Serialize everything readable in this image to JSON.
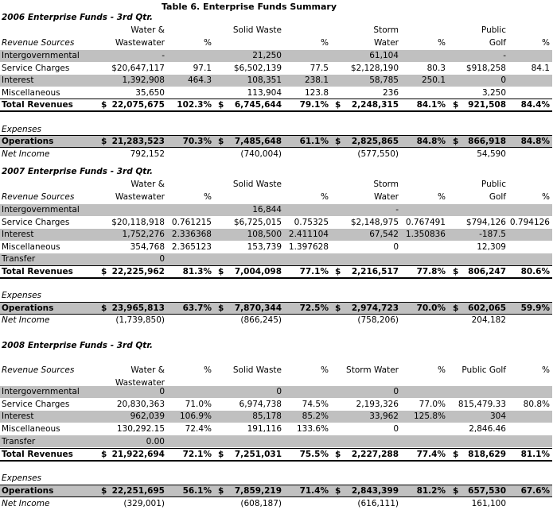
{
  "title": "Table 6.  Enterprise Funds Summary",
  "sections": [
    {
      "heading": "2006 Enterprise Funds - 3rd Qtr.",
      "header_rows": [
        [
          null,
          "Water &",
          null,
          "Solid Waste",
          null,
          "Storm",
          null,
          "Public",
          null
        ],
        [
          "Revenue Sources",
          "Wastewater",
          "%",
          null,
          "%",
          "Water",
          "%",
          "Golf",
          "%"
        ]
      ],
      "revenue_rows": [
        [
          "Intergovernmental",
          "-",
          null,
          "21,250",
          null,
          "61,104",
          null,
          "-",
          null
        ],
        [
          "Service Charges",
          "$20,647,117",
          "97.1",
          "$6,502,139",
          "77.5",
          "$2,128,190",
          "80.3",
          "$918,258",
          "84.1"
        ],
        [
          "Interest",
          "1,392,908",
          "464.3",
          "108,351",
          "238.1",
          "58,785",
          "250.1",
          "0",
          null
        ],
        [
          "Miscellaneous",
          "35,650",
          null,
          "113,904",
          "123.8",
          "236",
          null,
          "3,250",
          null
        ]
      ],
      "total_row": [
        "Total Revenues",
        "$",
        "22,075,675",
        "102.3%",
        "$",
        "6,745,644",
        "79.1%",
        "$",
        "2,248,315",
        "84.1%",
        "$",
        "921,508",
        "84.4%"
      ],
      "expenses_label": "Expenses",
      "operations_row": [
        "Operations",
        "$",
        "21,283,523",
        "70.3%",
        "$",
        "7,485,648",
        "61.1%",
        "$",
        "2,825,865",
        "84.8%",
        "$",
        "866,918",
        "84.8%"
      ],
      "net_income_row": [
        "Net Income",
        "792,152",
        null,
        "(740,004)",
        null,
        "(577,550)",
        null,
        "54,590",
        null
      ]
    },
    {
      "heading": "2007 Enterprise Funds - 3rd Qtr.",
      "header_rows": [
        [
          null,
          "Water &",
          null,
          "Solid Waste",
          null,
          "Storm",
          null,
          "Public",
          null
        ],
        [
          "Revenue Sources",
          "Wastewater",
          "%",
          null,
          "%",
          "Water",
          "%",
          "Golf",
          "%"
        ]
      ],
      "revenue_rows": [
        [
          "Intergovernmental",
          null,
          null,
          "16,844",
          null,
          "-",
          null,
          null,
          null
        ],
        [
          "Service Charges",
          "$20,118,918",
          "0.761215",
          "$6,725,015",
          "0.75325",
          "$2,148,975",
          "0.767491",
          "$794,126",
          "0.794126"
        ],
        [
          "Interest",
          "1,752,276",
          "2.336368",
          "108,500",
          "2.411104",
          "67,542",
          "1.350836",
          "-187.5",
          null
        ],
        [
          "Miscellaneous",
          "354,768",
          "2.365123",
          "153,739",
          "1.397628",
          "0",
          null,
          "12,309",
          null
        ],
        [
          "Transfer",
          "0",
          null,
          null,
          null,
          null,
          null,
          null,
          null
        ]
      ],
      "total_row": [
        "Total Revenues",
        "$",
        "22,225,962",
        "81.3%",
        "$",
        "7,004,098",
        "77.1%",
        "$",
        "2,216,517",
        "77.8%",
        "$",
        "806,247",
        "80.6%"
      ],
      "expenses_label": "Expenses",
      "operations_row": [
        "Operations",
        "$",
        "23,965,813",
        "63.7%",
        "$",
        "7,870,344",
        "72.5%",
        "$",
        "2,974,723",
        "70.0%",
        "$",
        "602,065",
        "59.9%"
      ],
      "net_income_row": [
        "Net Income",
        "(1,739,850)",
        null,
        "(866,245)",
        null,
        "(758,206)",
        null,
        "204,182",
        null
      ]
    },
    {
      "heading": "2008 Enterprise Funds - 3rd Qtr.",
      "header_rows": [
        [
          "Revenue Sources",
          "Water &",
          "%",
          "Solid Waste",
          "%",
          "Storm Water",
          "%",
          "Public Golf",
          "%"
        ],
        [
          null,
          "Wastewater",
          null,
          null,
          null,
          null,
          null,
          null,
          null
        ]
      ],
      "revenue_rows": [
        [
          "Intergovernmental",
          "0",
          null,
          "0",
          null,
          "0",
          null,
          null,
          null
        ],
        [
          "Service Charges",
          "20,830,363",
          "71.0%",
          "6,974,738",
          "74.5%",
          "2,193,326",
          "77.0%",
          "815,479.33",
          "80.8%"
        ],
        [
          "Interest",
          "962,039",
          "106.9%",
          "85,178",
          "85.2%",
          "33,962",
          "125.8%",
          "304",
          null
        ],
        [
          "Miscellaneous",
          "130,292.15",
          "72.4%",
          "191,116",
          "133.6%",
          "0",
          null,
          "2,846.46",
          null
        ],
        [
          "Transfer",
          "0.00",
          null,
          null,
          null,
          null,
          null,
          null,
          null
        ]
      ],
      "total_row": [
        "Total Revenues",
        "$",
        "21,922,694",
        "72.1%",
        "$",
        "7,251,031",
        "75.5%",
        "$",
        "2,227,288",
        "77.4%",
        "$",
        "818,629",
        "81.1%"
      ],
      "expenses_label": "Expenses",
      "operations_row": [
        "Operations",
        "$",
        "22,251,695",
        "56.1%",
        "$",
        "7,859,219",
        "71.4%",
        "$",
        "2,843,399",
        "81.2%",
        "$",
        "657,530",
        "67.6%"
      ],
      "net_income_row": [
        "Net Income",
        "(329,001)",
        null,
        "(608,187)",
        null,
        "(616,111)",
        null,
        "161,100",
        null
      ]
    }
  ]
}
